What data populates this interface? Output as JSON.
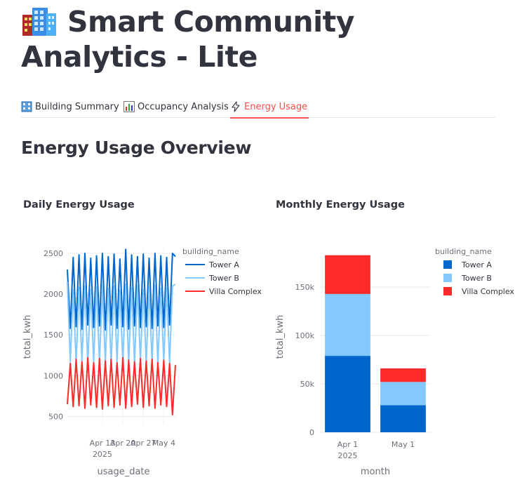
{
  "app": {
    "title": "Smart Community Analytics - Lite",
    "title_icon": "office-building-icon"
  },
  "tabs": [
    {
      "label": "Building Summary",
      "icon": "office-building-icon",
      "active": false
    },
    {
      "label": "Occupancy Analysis",
      "icon": "bar-chart-icon",
      "active": false
    },
    {
      "label": "Energy Usage",
      "icon": "lightning-icon",
      "active": true
    }
  ],
  "section": {
    "heading": "Energy Usage Overview"
  },
  "colors": {
    "tower_a": "#0066cc",
    "tower_b": "#83c9ff",
    "villa_complex": "#ff2b2b",
    "active_tab": "#ff4b4b"
  },
  "chart_data": [
    {
      "type": "line",
      "title": "Daily Energy Usage",
      "xlabel": "usage_date",
      "ylabel": "total_kwh",
      "xlim": [
        "2025-04-01",
        "2025-05-08"
      ],
      "ylim": [
        400,
        2560
      ],
      "x_ticks": [
        "Apr 13\n2025",
        "Apr 20",
        "Apr 27",
        "May 4"
      ],
      "y_ticks": [
        "500",
        "1000",
        "1500",
        "2000",
        "2500"
      ],
      "legend_title": "building_name",
      "legend_position": "top-right",
      "grid": true,
      "series": [
        {
          "name": "Tower A",
          "color": "#0066cc",
          "x": [
            "2025-04-01",
            "2025-04-02",
            "2025-04-03",
            "2025-04-04",
            "2025-04-05",
            "2025-04-06",
            "2025-04-07",
            "2025-04-08",
            "2025-04-09",
            "2025-04-10",
            "2025-04-11",
            "2025-04-12",
            "2025-04-13",
            "2025-04-14",
            "2025-04-15",
            "2025-04-16",
            "2025-04-17",
            "2025-04-18",
            "2025-04-19",
            "2025-04-20",
            "2025-04-21",
            "2025-04-22",
            "2025-04-23",
            "2025-04-24",
            "2025-04-25",
            "2025-04-26",
            "2025-04-27",
            "2025-04-28",
            "2025-04-29",
            "2025-04-30",
            "2025-05-01",
            "2025-05-02",
            "2025-05-03",
            "2025-05-04",
            "2025-05-05",
            "2025-05-06",
            "2025-05-07",
            "2025-05-08"
          ],
          "values": [
            2300,
            1580,
            2450,
            1600,
            2480,
            1570,
            2500,
            1620,
            2440,
            1590,
            2470,
            1610,
            2500,
            1560,
            2460,
            1620,
            2490,
            1580,
            2430,
            1600,
            2550,
            1570,
            2480,
            1610,
            2460,
            1590,
            2490,
            1600,
            2440,
            1580,
            2500,
            1610,
            2470,
            1590,
            2450,
            1620,
            2500,
            2460
          ]
        },
        {
          "name": "Tower B",
          "color": "#83c9ff",
          "x": [
            "2025-04-01",
            "2025-04-02",
            "2025-04-03",
            "2025-04-04",
            "2025-04-05",
            "2025-04-06",
            "2025-04-07",
            "2025-04-08",
            "2025-04-09",
            "2025-04-10",
            "2025-04-11",
            "2025-04-12",
            "2025-04-13",
            "2025-04-14",
            "2025-04-15",
            "2025-04-16",
            "2025-04-17",
            "2025-04-18",
            "2025-04-19",
            "2025-04-20",
            "2025-04-21",
            "2025-04-22",
            "2025-04-23",
            "2025-04-24",
            "2025-04-25",
            "2025-04-26",
            "2025-04-27",
            "2025-04-28",
            "2025-04-29",
            "2025-04-30",
            "2025-05-01",
            "2025-05-02",
            "2025-05-03",
            "2025-05-04",
            "2025-05-05",
            "2025-05-06",
            "2025-05-07",
            "2025-05-08"
          ],
          "values": [
            2150,
            1170,
            2050,
            1150,
            2080,
            1180,
            2100,
            1140,
            2060,
            1170,
            2090,
            1150,
            2110,
            1160,
            2070,
            1140,
            2100,
            1170,
            2050,
            1150,
            2120,
            1160,
            2080,
            1140,
            2100,
            1170,
            2060,
            1150,
            2090,
            1160,
            2110,
            1140,
            2070,
            1170,
            2080,
            1150,
            2100,
            2120
          ]
        },
        {
          "name": "Villa Complex",
          "color": "#ff2b2b",
          "x": [
            "2025-04-01",
            "2025-04-02",
            "2025-04-03",
            "2025-04-04",
            "2025-04-05",
            "2025-04-06",
            "2025-04-07",
            "2025-04-08",
            "2025-04-09",
            "2025-04-10",
            "2025-04-11",
            "2025-04-12",
            "2025-04-13",
            "2025-04-14",
            "2025-04-15",
            "2025-04-16",
            "2025-04-17",
            "2025-04-18",
            "2025-04-19",
            "2025-04-20",
            "2025-04-21",
            "2025-04-22",
            "2025-04-23",
            "2025-04-24",
            "2025-04-25",
            "2025-04-26",
            "2025-04-27",
            "2025-04-28",
            "2025-04-29",
            "2025-04-30",
            "2025-05-01",
            "2025-05-02",
            "2025-05-03",
            "2025-05-04",
            "2025-05-05",
            "2025-05-06",
            "2025-05-07",
            "2025-05-08"
          ],
          "values": [
            650,
            1150,
            620,
            1200,
            630,
            1170,
            600,
            1220,
            640,
            1160,
            610,
            1210,
            590,
            1180,
            630,
            1200,
            610,
            1160,
            640,
            1220,
            600,
            1190,
            620,
            1170,
            650,
            1210,
            610,
            1180,
            630,
            1200,
            600,
            1160,
            640,
            1190,
            620,
            1150,
            520,
            1130
          ]
        }
      ]
    },
    {
      "type": "bar",
      "stacked": true,
      "title": "Monthly Energy Usage",
      "xlabel": "month",
      "ylabel": "total_kwh",
      "categories": [
        "Apr 1\n2025",
        "May 1"
      ],
      "ylim": [
        0,
        190000
      ],
      "y_ticks": [
        "0",
        "50k",
        "100k",
        "150k"
      ],
      "legend_title": "building_name",
      "legend_position": "top-right",
      "grid": true,
      "series": [
        {
          "name": "Tower A",
          "color": "#0066cc",
          "values": [
            79000,
            28000
          ]
        },
        {
          "name": "Tower B",
          "color": "#83c9ff",
          "values": [
            64000,
            24000
          ]
        },
        {
          "name": "Villa Complex",
          "color": "#ff2b2b",
          "values": [
            40000,
            14000
          ]
        }
      ]
    }
  ]
}
